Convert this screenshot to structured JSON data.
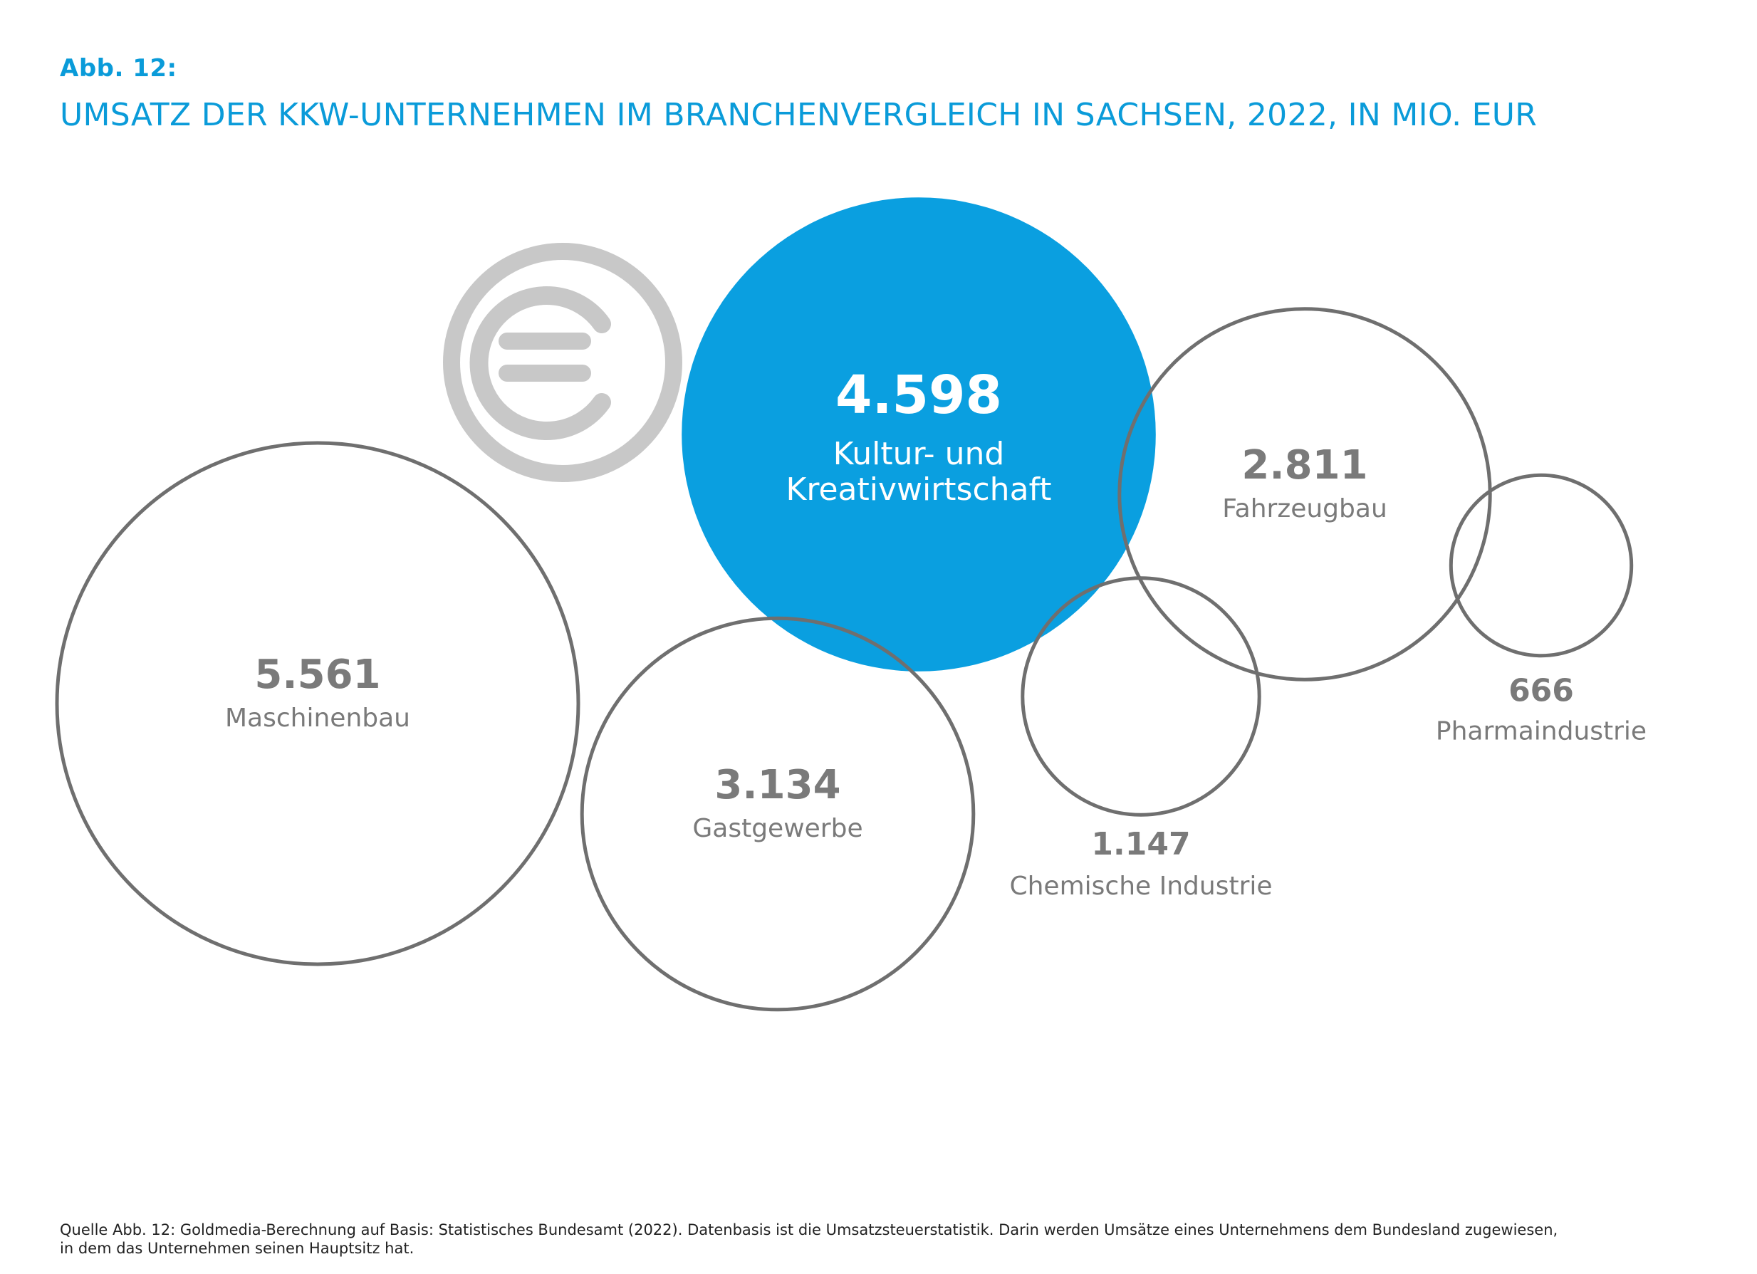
{
  "figure": {
    "label": "Abb. 12:",
    "title": "UMSATZ DER KKW-UNTERNEHMEN IM BRANCHENVERGLEICH IN SACHSEN, 2022, IN MIO. EUR"
  },
  "source": {
    "line1": "Quelle Abb. 12: Goldmedia-Berechnung auf Basis: Statistisches Bundesamt (2022). Datenbasis ist die Umsatzsteuerstatistik. Darin werden Umsätze eines Unternehmens dem Bundesland zugewiesen,",
    "line2": "in dem das Unternehmen seinen Hauptsitz hat."
  },
  "icon": {
    "name": "euro-coin-icon",
    "color": "#c8c8c8"
  },
  "colors": {
    "highlight": "#0a9fe0",
    "outline": "#6f6f6f",
    "label": "#7a7a7a",
    "highlight_text": "#ffffff"
  },
  "chart_data": {
    "type": "bubble",
    "unit": "Mio. EUR",
    "series": [
      {
        "name": "Maschinenbau",
        "label": "5.561",
        "value": 5561,
        "highlight": false
      },
      {
        "name": "Kultur- und Kreativwirtschaft",
        "label": "4.598",
        "value": 4598,
        "highlight": true
      },
      {
        "name": "Gastgewerbe",
        "label": "3.134",
        "value": 3134,
        "highlight": false
      },
      {
        "name": "Fahrzeugbau",
        "label": "2.811",
        "value": 2811,
        "highlight": false
      },
      {
        "name": "Chemische Industrie",
        "label": "1.147",
        "value": 1147,
        "highlight": false
      },
      {
        "name": "Pharmaindustrie",
        "label": "666",
        "value": 666,
        "highlight": false
      }
    ]
  }
}
